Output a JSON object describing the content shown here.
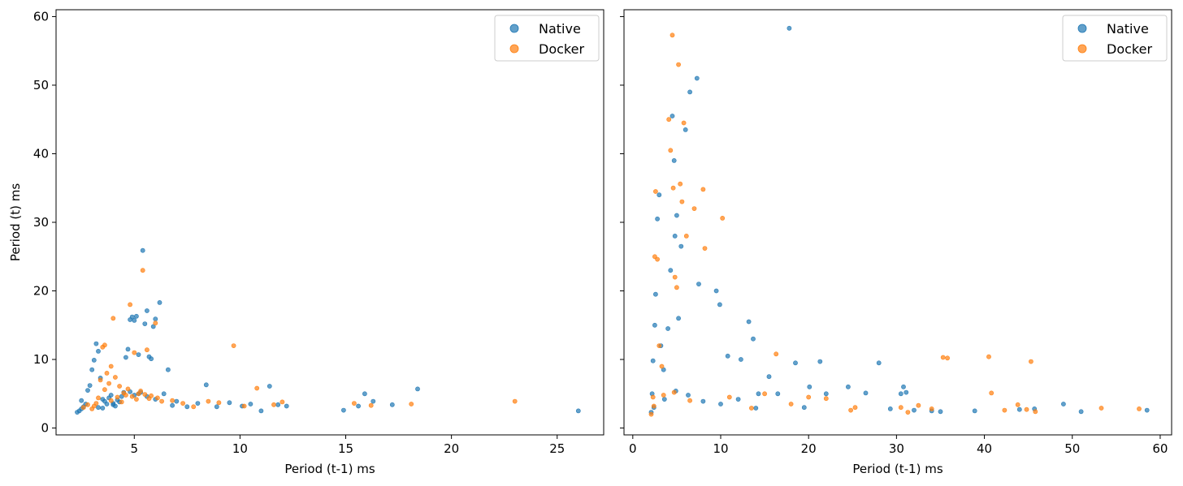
{
  "chart_data": [
    {
      "type": "scatter",
      "title": "",
      "xlabel": "Period (t-1) ms",
      "ylabel": "Period (t) ms",
      "xlim": [
        1.3,
        27.2
      ],
      "ylim": [
        -1,
        61
      ],
      "xticks": [
        5,
        10,
        15,
        20,
        25
      ],
      "yticks": [
        0,
        10,
        20,
        30,
        40,
        50,
        60
      ],
      "legend": "top-right",
      "series": [
        {
          "name": "Native",
          "color": "#1f77b4",
          "points": [
            [
              2.3,
              2.3
            ],
            [
              2.4,
              2.5
            ],
            [
              2.5,
              2.8
            ],
            [
              2.6,
              3.1
            ],
            [
              2.5,
              4.0
            ],
            [
              2.7,
              3.5
            ],
            [
              2.8,
              5.5
            ],
            [
              2.9,
              6.2
            ],
            [
              3.0,
              8.5
            ],
            [
              3.1,
              9.9
            ],
            [
              3.2,
              12.3
            ],
            [
              3.3,
              11.2
            ],
            [
              3.4,
              7.3
            ],
            [
              3.5,
              4.2
            ],
            [
              3.6,
              3.9
            ],
            [
              3.7,
              3.5
            ],
            [
              3.8,
              4.4
            ],
            [
              3.9,
              4.8
            ],
            [
              4.0,
              3.6
            ],
            [
              4.1,
              3.2
            ],
            [
              4.2,
              4.1
            ],
            [
              4.3,
              3.8
            ],
            [
              4.4,
              4.6
            ],
            [
              4.5,
              5.2
            ],
            [
              4.6,
              10.3
            ],
            [
              4.7,
              11.5
            ],
            [
              4.8,
              15.8
            ],
            [
              4.9,
              16.2
            ],
            [
              5.0,
              15.7
            ],
            [
              5.1,
              16.3
            ],
            [
              5.2,
              10.7
            ],
            [
              5.3,
              5.2
            ],
            [
              5.4,
              25.9
            ],
            [
              5.5,
              15.2
            ],
            [
              5.6,
              17.1
            ],
            [
              5.7,
              10.4
            ],
            [
              5.8,
              10.1
            ],
            [
              5.9,
              14.8
            ],
            [
              6.0,
              15.9
            ],
            [
              6.2,
              18.3
            ],
            [
              6.4,
              5.0
            ],
            [
              6.6,
              8.5
            ],
            [
              6.8,
              3.3
            ],
            [
              7.0,
              3.9
            ],
            [
              7.5,
              3.1
            ],
            [
              8.0,
              3.6
            ],
            [
              8.4,
              6.3
            ],
            [
              8.9,
              3.1
            ],
            [
              9.5,
              3.7
            ],
            [
              10.1,
              3.2
            ],
            [
              10.5,
              3.5
            ],
            [
              11.0,
              2.5
            ],
            [
              11.4,
              6.1
            ],
            [
              11.8,
              3.4
            ],
            [
              12.2,
              3.2
            ],
            [
              14.9,
              2.6
            ],
            [
              15.6,
              3.2
            ],
            [
              15.9,
              5.0
            ],
            [
              16.3,
              3.9
            ],
            [
              17.2,
              3.4
            ],
            [
              18.4,
              5.7
            ],
            [
              26.0,
              2.5
            ],
            [
              5.0,
              4.8
            ],
            [
              5.2,
              5.0
            ],
            [
              4.8,
              5.3
            ],
            [
              5.6,
              4.6
            ],
            [
              6.0,
              4.2
            ],
            [
              3.3,
              3.0
            ],
            [
              3.5,
              2.9
            ],
            [
              4.0,
              3.4
            ]
          ]
        },
        {
          "name": "Docker",
          "color": "#ff7f0e",
          "points": [
            [
              2.6,
              3.0
            ],
            [
              2.8,
              3.4
            ],
            [
              3.0,
              2.8
            ],
            [
              3.2,
              3.6
            ],
            [
              3.4,
              7.0
            ],
            [
              3.5,
              11.8
            ],
            [
              3.6,
              12.1
            ],
            [
              3.7,
              8.0
            ],
            [
              3.8,
              6.5
            ],
            [
              3.9,
              4.0
            ],
            [
              4.0,
              16.0
            ],
            [
              4.2,
              4.5
            ],
            [
              4.4,
              3.8
            ],
            [
              4.6,
              4.8
            ],
            [
              4.8,
              18.0
            ],
            [
              5.0,
              11.0
            ],
            [
              5.2,
              5.0
            ],
            [
              5.4,
              23.0
            ],
            [
              5.6,
              11.4
            ],
            [
              5.8,
              4.7
            ],
            [
              6.0,
              15.3
            ],
            [
              6.3,
              3.9
            ],
            [
              6.8,
              4.0
            ],
            [
              7.3,
              3.6
            ],
            [
              7.8,
              3.1
            ],
            [
              8.5,
              3.9
            ],
            [
              9.0,
              3.7
            ],
            [
              9.7,
              12.0
            ],
            [
              10.2,
              3.2
            ],
            [
              10.8,
              5.8
            ],
            [
              11.6,
              3.4
            ],
            [
              12.0,
              3.8
            ],
            [
              15.4,
              3.6
            ],
            [
              16.2,
              3.3
            ],
            [
              18.1,
              3.5
            ],
            [
              23.0,
              3.9
            ],
            [
              4.5,
              5.1
            ],
            [
              4.9,
              4.6
            ],
            [
              5.1,
              4.2
            ],
            [
              5.5,
              4.9
            ],
            [
              3.1,
              3.2
            ],
            [
              3.3,
              4.4
            ],
            [
              3.6,
              5.6
            ],
            [
              4.1,
              7.4
            ],
            [
              4.3,
              6.1
            ],
            [
              4.7,
              5.7
            ],
            [
              5.3,
              5.4
            ],
            [
              5.7,
              4.3
            ],
            [
              6.1,
              4.4
            ],
            [
              3.9,
              9.0
            ]
          ]
        }
      ]
    },
    {
      "type": "scatter",
      "title": "",
      "xlabel": "Period (t-1) ms",
      "ylabel": "",
      "xlim": [
        -1,
        61.3
      ],
      "ylim": [
        -1,
        61
      ],
      "xticks": [
        0,
        10,
        20,
        30,
        40,
        50,
        60
      ],
      "yticks": [
        0,
        10,
        20,
        30,
        40,
        50,
        60
      ],
      "legend": "top-right",
      "series": [
        {
          "name": "Native",
          "color": "#1f77b4",
          "points": [
            [
              2.1,
              2.3
            ],
            [
              2.2,
              5.0
            ],
            [
              2.3,
              9.8
            ],
            [
              2.5,
              15.0
            ],
            [
              2.6,
              19.5
            ],
            [
              2.8,
              30.5
            ],
            [
              3.0,
              34.0
            ],
            [
              3.2,
              12.0
            ],
            [
              3.5,
              8.5
            ],
            [
              4.0,
              14.5
            ],
            [
              4.3,
              23.0
            ],
            [
              4.5,
              45.5
            ],
            [
              4.7,
              39.0
            ],
            [
              4.8,
              28.0
            ],
            [
              5.0,
              31.0
            ],
            [
              5.2,
              16.0
            ],
            [
              5.5,
              26.5
            ],
            [
              6.0,
              43.5
            ],
            [
              6.5,
              49.0
            ],
            [
              7.3,
              51.0
            ],
            [
              7.5,
              21.0
            ],
            [
              9.5,
              20.0
            ],
            [
              9.9,
              18.0
            ],
            [
              10.8,
              10.5
            ],
            [
              12.3,
              10.0
            ],
            [
              13.2,
              15.5
            ],
            [
              13.7,
              13.0
            ],
            [
              14.3,
              5.0
            ],
            [
              15.5,
              7.5
            ],
            [
              16.5,
              5.0
            ],
            [
              17.8,
              58.3
            ],
            [
              18.5,
              9.5
            ],
            [
              19.5,
              3.0
            ],
            [
              20.1,
              6.0
            ],
            [
              21.3,
              9.7
            ],
            [
              22.0,
              5.0
            ],
            [
              24.5,
              6.0
            ],
            [
              26.5,
              5.1
            ],
            [
              28.0,
              9.5
            ],
            [
              29.3,
              2.8
            ],
            [
              30.5,
              5.0
            ],
            [
              30.8,
              6.0
            ],
            [
              31.1,
              5.2
            ],
            [
              32.0,
              2.6
            ],
            [
              34.0,
              2.5
            ],
            [
              35.0,
              2.4
            ],
            [
              38.9,
              2.5
            ],
            [
              44.0,
              2.7
            ],
            [
              45.7,
              2.8
            ],
            [
              49.0,
              3.5
            ],
            [
              51.0,
              2.4
            ],
            [
              58.5,
              2.6
            ],
            [
              2.4,
              3.0
            ],
            [
              3.6,
              4.2
            ],
            [
              4.9,
              5.4
            ],
            [
              6.3,
              4.8
            ],
            [
              8.0,
              3.9
            ],
            [
              10.0,
              3.5
            ],
            [
              12.0,
              4.2
            ],
            [
              14.0,
              2.9
            ]
          ]
        },
        {
          "name": "Docker",
          "color": "#ff7f0e",
          "points": [
            [
              2.1,
              2.0
            ],
            [
              2.3,
              4.5
            ],
            [
              2.5,
              25.0
            ],
            [
              2.6,
              34.5
            ],
            [
              2.8,
              24.6
            ],
            [
              3.0,
              12.0
            ],
            [
              3.3,
              9.0
            ],
            [
              4.1,
              45.0
            ],
            [
              4.3,
              40.5
            ],
            [
              4.5,
              57.3
            ],
            [
              4.6,
              35.0
            ],
            [
              4.8,
              22.0
            ],
            [
              5.0,
              20.5
            ],
            [
              5.2,
              53.0
            ],
            [
              5.4,
              35.6
            ],
            [
              5.6,
              33.0
            ],
            [
              5.8,
              44.5
            ],
            [
              6.1,
              28.0
            ],
            [
              7.0,
              32.0
            ],
            [
              8.0,
              34.8
            ],
            [
              8.2,
              26.2
            ],
            [
              10.2,
              30.6
            ],
            [
              11.0,
              4.5
            ],
            [
              13.5,
              2.9
            ],
            [
              15.0,
              5.0
            ],
            [
              16.3,
              10.8
            ],
            [
              18.0,
              3.5
            ],
            [
              20.0,
              4.5
            ],
            [
              22.0,
              4.3
            ],
            [
              24.8,
              2.6
            ],
            [
              25.3,
              3.0
            ],
            [
              30.5,
              3.0
            ],
            [
              31.3,
              2.3
            ],
            [
              32.5,
              3.3
            ],
            [
              34.0,
              2.8
            ],
            [
              35.3,
              10.3
            ],
            [
              35.8,
              10.2
            ],
            [
              40.5,
              10.4
            ],
            [
              40.8,
              5.1
            ],
            [
              42.3,
              2.6
            ],
            [
              43.8,
              3.4
            ],
            [
              44.8,
              2.7
            ],
            [
              45.3,
              9.7
            ],
            [
              45.8,
              2.4
            ],
            [
              53.3,
              2.9
            ],
            [
              57.6,
              2.8
            ],
            [
              2.4,
              3.2
            ],
            [
              3.5,
              4.8
            ],
            [
              4.7,
              5.2
            ],
            [
              6.5,
              4.0
            ]
          ]
        }
      ]
    }
  ]
}
